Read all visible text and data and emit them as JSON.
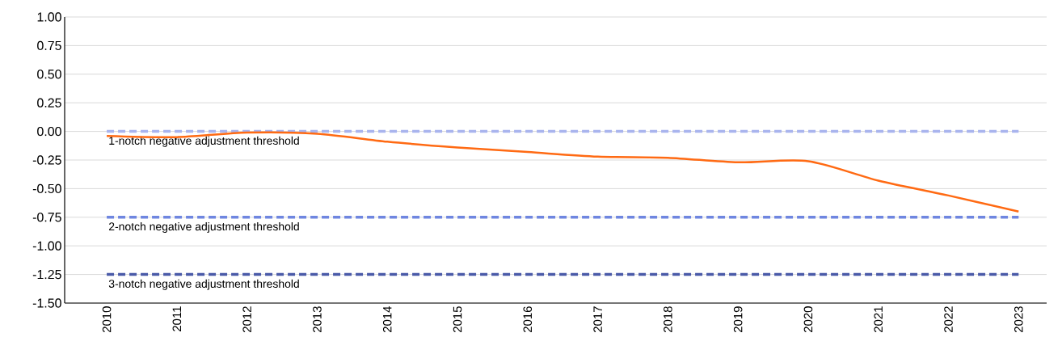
{
  "chart_data": {
    "type": "line",
    "categories": [
      "2010",
      "2011",
      "2012",
      "2013",
      "2014",
      "2015",
      "2016",
      "2017",
      "2018",
      "2019",
      "2020",
      "2021",
      "2022",
      "2023"
    ],
    "series": [
      {
        "color": "#ff6a13",
        "values": [
          -0.04,
          -0.05,
          -0.01,
          -0.02,
          -0.09,
          -0.14,
          -0.18,
          -0.22,
          -0.23,
          -0.27,
          -0.26,
          -0.43,
          -0.56,
          -0.7
        ]
      }
    ],
    "ylim": [
      -1.5,
      1.0
    ],
    "yticks": [
      {
        "value": -1.5,
        "label": "-1.50"
      },
      {
        "value": -1.25,
        "label": "-1.25"
      },
      {
        "value": -1.0,
        "label": "-1.00"
      },
      {
        "value": -0.75,
        "label": "-0.75"
      },
      {
        "value": -0.5,
        "label": "-0.50"
      },
      {
        "value": -0.25,
        "label": "-0.25"
      },
      {
        "value": 0,
        "label": "0.00"
      },
      {
        "value": 0.25,
        "label": "0.25"
      },
      {
        "value": 0.5,
        "label": "0.50"
      },
      {
        "value": 0.75,
        "label": "0.75"
      },
      {
        "value": 1.0,
        "label": "1.00"
      }
    ],
    "grid": "y",
    "legend": false,
    "marker": "none",
    "line_style": "solid",
    "ref_lines": [
      {
        "axis": "y",
        "value": 0,
        "label": "1-notch negative adjustment threshold",
        "color": "#a9b4ee",
        "line_style": "dashed"
      },
      {
        "axis": "y",
        "value": -0.75,
        "label": "2-notch negative adjustment threshold",
        "color": "#6f86e0",
        "line_style": "dashed"
      },
      {
        "axis": "y",
        "value": -1.25,
        "label": "3-notch negative adjustment threshold",
        "color": "#4a5aa8",
        "line_style": "dashed"
      }
    ]
  }
}
